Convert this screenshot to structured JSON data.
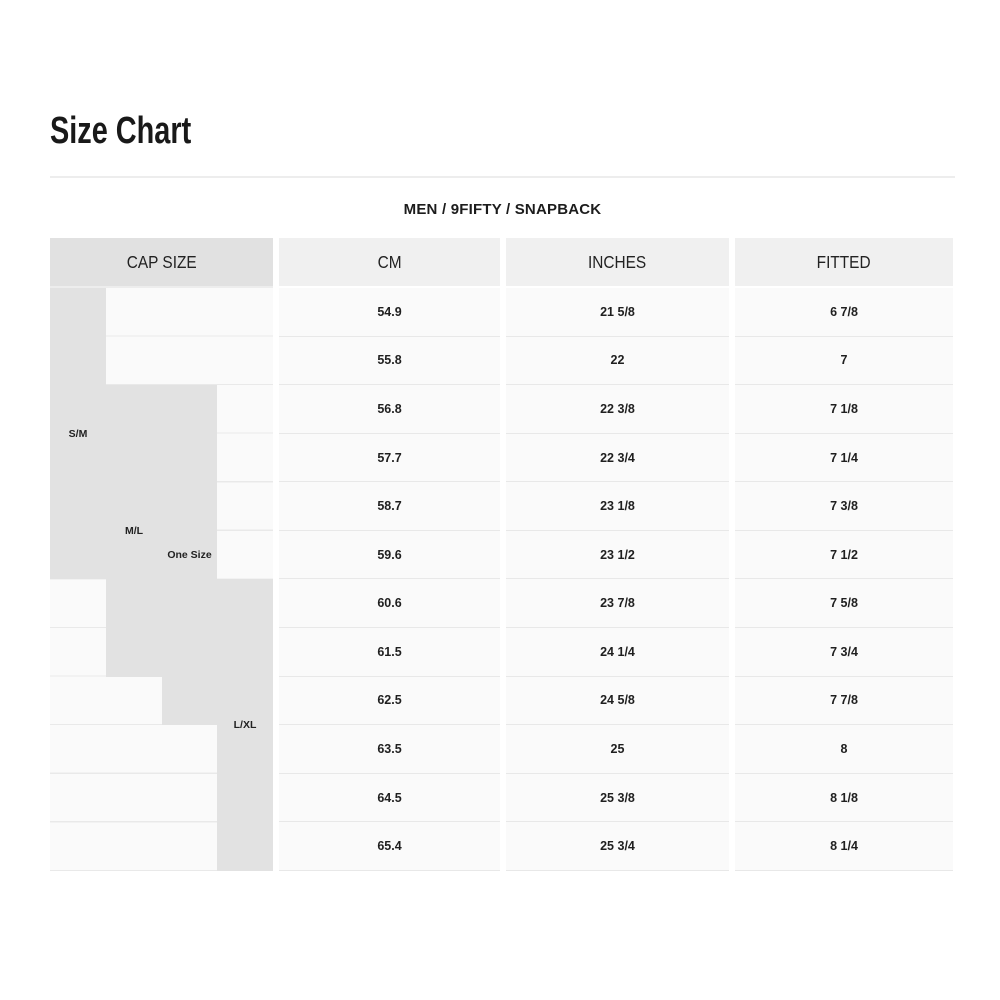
{
  "page": {
    "title": "Size Chart",
    "subtitle": "MEN / 9FIFTY / SNAPBACK"
  },
  "table": {
    "headers": {
      "cap_size": "CAP SIZE",
      "cm": "CM",
      "inches": "INCHES",
      "fitted": "FITTED"
    },
    "size_groups": [
      {
        "label": "S/M",
        "row_start": 1,
        "row_end": 6
      },
      {
        "label": "M/L",
        "row_start": 3,
        "row_end": 8
      },
      {
        "label": "One Size",
        "row_start": 3,
        "row_end": 9
      },
      {
        "label": "L/XL",
        "row_start": 7,
        "row_end": 12
      }
    ],
    "rows": [
      {
        "cm": "54.9",
        "inches": "21 5/8",
        "fitted": "6 7/8"
      },
      {
        "cm": "55.8",
        "inches": "22",
        "fitted": "7"
      },
      {
        "cm": "56.8",
        "inches": "22 3/8",
        "fitted": "7 1/8"
      },
      {
        "cm": "57.7",
        "inches": "22 3/4",
        "fitted": "7 1/4"
      },
      {
        "cm": "58.7",
        "inches": "23 1/8",
        "fitted": "7 3/8"
      },
      {
        "cm": "59.6",
        "inches": "23 1/2",
        "fitted": "7 1/2"
      },
      {
        "cm": "60.6",
        "inches": "23 7/8",
        "fitted": "7 5/8"
      },
      {
        "cm": "61.5",
        "inches": "24 1/4",
        "fitted": "7 3/4"
      },
      {
        "cm": "62.5",
        "inches": "24 5/8",
        "fitted": "7 7/8"
      },
      {
        "cm": "63.5",
        "inches": "25",
        "fitted": "8"
      },
      {
        "cm": "64.5",
        "inches": "25 3/8",
        "fitted": "8 1/8"
      },
      {
        "cm": "65.4",
        "inches": "25 3/4",
        "fitted": "8 1/4"
      }
    ]
  },
  "colors": {
    "group_highlight": "#e2e2e2",
    "cap_header_bg": "#e1e1e1",
    "column_header_bg": "#f0f0f0",
    "row_bg": "#fafafa",
    "row_separator": "#e8e8e8",
    "text": "#1f1f1f"
  }
}
